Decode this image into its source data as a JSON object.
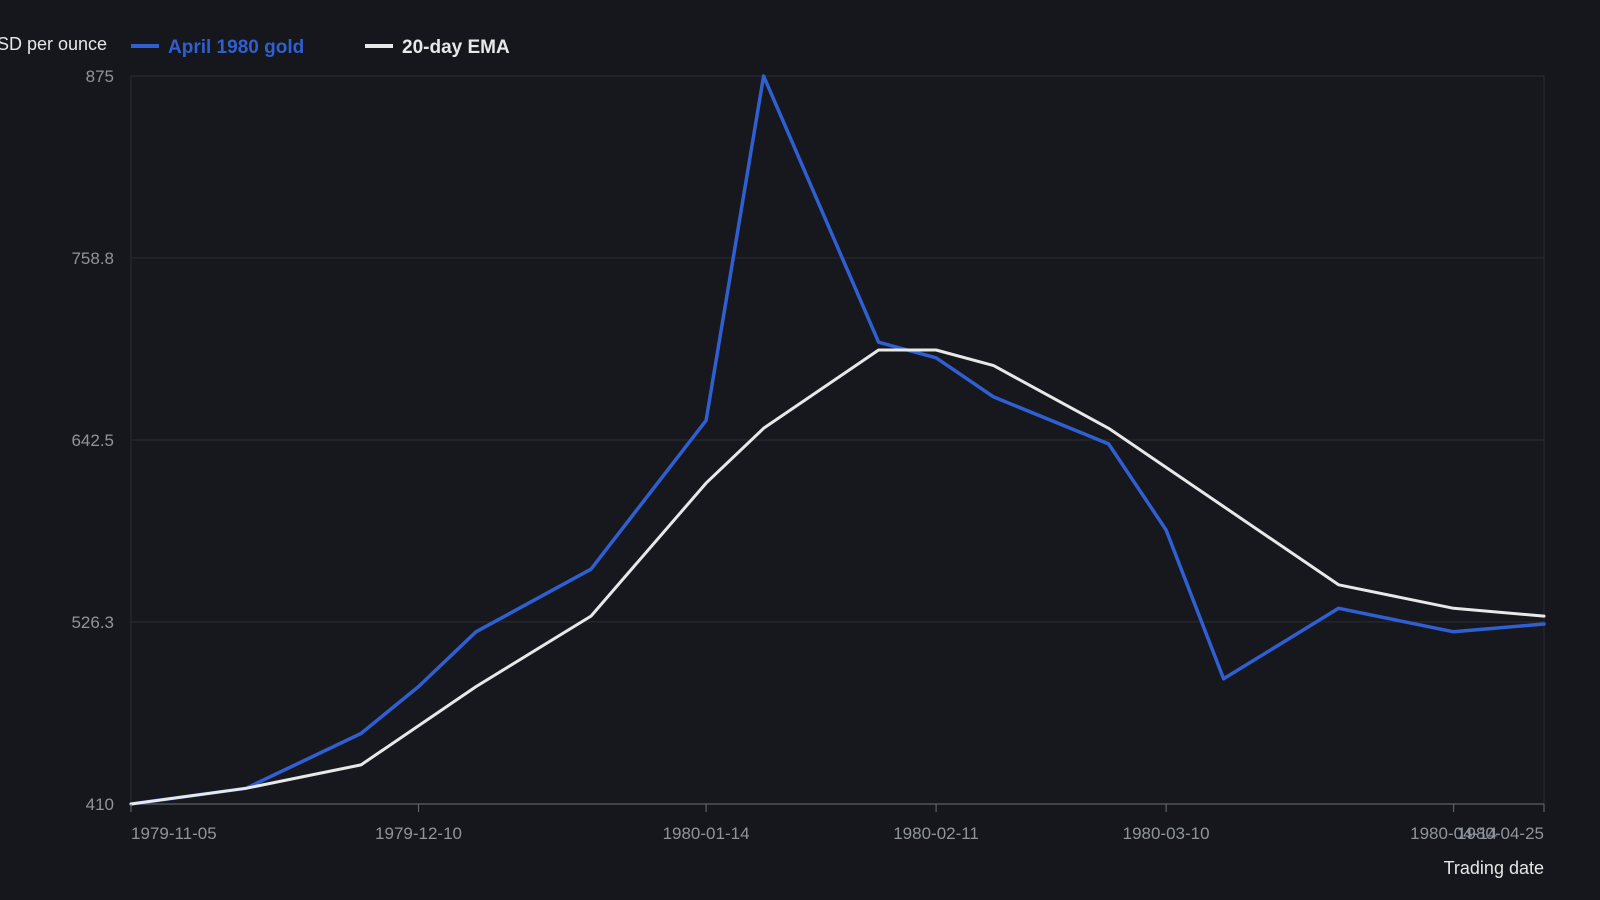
{
  "chart_data": {
    "type": "line",
    "ylabel": "USD per ounce",
    "xlabel": "Trading date",
    "ylim": [
      410,
      875
    ],
    "yticks": [
      "875",
      "758.8",
      "642.5",
      "526.3",
      "410"
    ],
    "xlim": [
      "1979-11-05",
      "1980-04-25"
    ],
    "xticks": [
      "1979-11-05",
      "1979-12-10",
      "1980-01-14",
      "1980-02-11",
      "1980-03-10",
      "1980-04-14",
      "1980-04-25"
    ],
    "grid": "horizontal",
    "legend_position": "top-left",
    "series": [
      {
        "name": "April 1980 gold",
        "color": "#2f5fd0",
        "x": [
          "1979-11-05",
          "1979-11-19",
          "1979-12-03",
          "1979-12-10",
          "1979-12-17",
          "1979-12-31",
          "1980-01-14",
          "1980-01-21",
          "1980-02-04",
          "1980-02-11",
          "1980-02-18",
          "1980-03-03",
          "1980-03-10",
          "1980-03-17",
          "1980-03-31",
          "1980-04-14",
          "1980-04-25"
        ],
        "values": [
          410,
          420,
          455,
          485,
          520,
          560,
          655,
          875,
          705,
          695,
          670,
          640,
          585,
          490,
          535,
          520,
          525
        ]
      },
      {
        "name": "20-day EMA",
        "color": "#e8e8e8",
        "x": [
          "1979-11-05",
          "1979-11-19",
          "1979-12-03",
          "1979-12-17",
          "1979-12-31",
          "1980-01-14",
          "1980-01-21",
          "1980-02-04",
          "1980-02-11",
          "1980-02-18",
          "1980-03-03",
          "1980-03-10",
          "1980-03-31",
          "1980-04-14",
          "1980-04-25"
        ],
        "values": [
          410,
          420,
          435,
          485,
          530,
          615,
          650,
          700,
          700,
          690,
          650,
          625,
          550,
          535,
          530
        ]
      }
    ]
  }
}
